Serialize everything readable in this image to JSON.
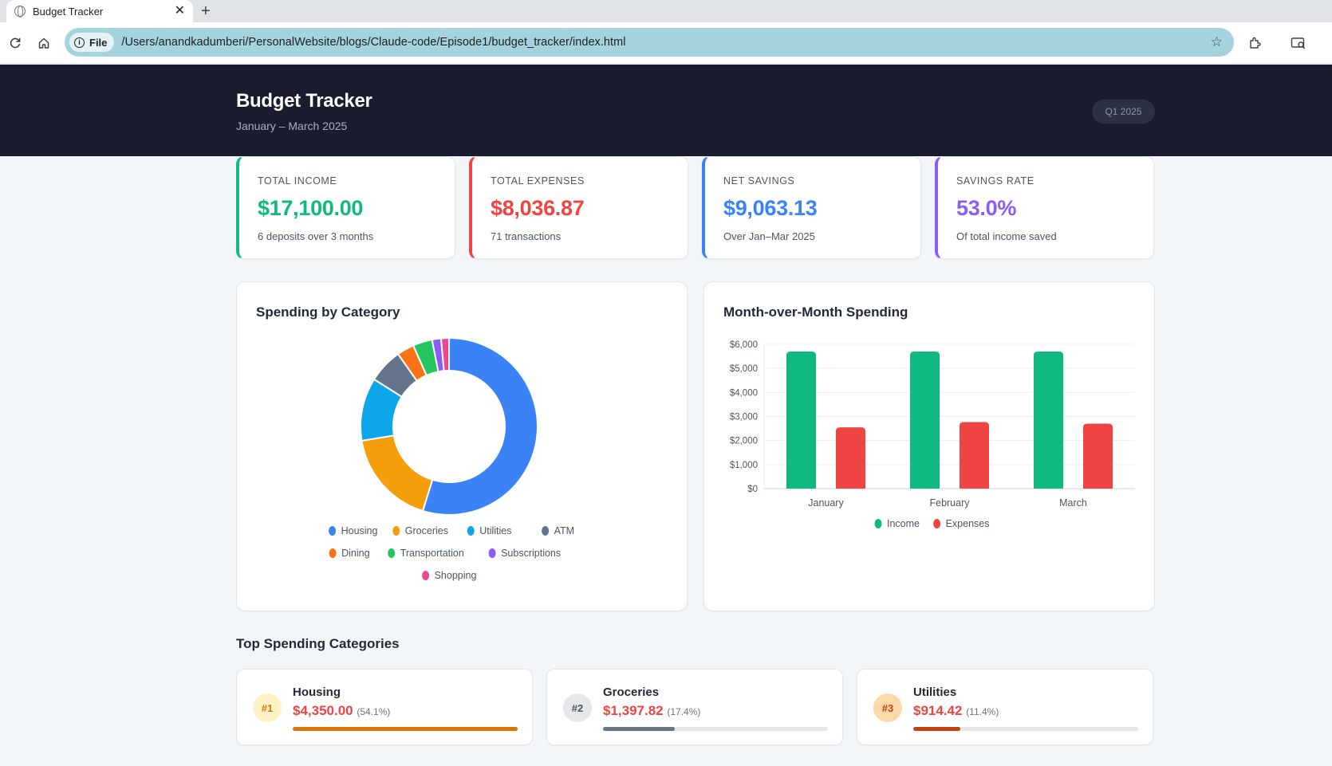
{
  "browser": {
    "tab_title": "Budget Tracker",
    "file_label": "File",
    "url": "/Users/anandkadumberi/PersonalWebsite/blogs/Claude-code/Episode1/budget_tracker/index.html"
  },
  "header": {
    "title": "Budget Tracker",
    "subtitle": "January – March 2025",
    "period_badge": "Q1 2025"
  },
  "stats": [
    {
      "label": "TOTAL INCOME",
      "value": "$17,100.00",
      "note": "6 deposits over 3 months",
      "color": "#10b981"
    },
    {
      "label": "TOTAL EXPENSES",
      "value": "$8,036.87",
      "note": "71 transactions",
      "color": "#ef4444"
    },
    {
      "label": "NET SAVINGS",
      "value": "$9,063.13",
      "note": "Over Jan–Mar 2025",
      "color": "#3b82f6"
    },
    {
      "label": "SAVINGS RATE",
      "value": "53.0%",
      "note": "Of total income saved",
      "color": "#8b5cf6"
    }
  ],
  "chart_data": [
    {
      "type": "pie",
      "title": "Spending by Category",
      "categories": [
        "Housing",
        "Groceries",
        "Utilities",
        "ATM",
        "Dining",
        "Transportation",
        "Subscriptions",
        "Shopping"
      ],
      "values": [
        4350.0,
        1397.82,
        914.42,
        500,
        250,
        280,
        130,
        115
      ],
      "colors": [
        "#3b82f6",
        "#f59e0b",
        "#0ea5e9",
        "#64748b",
        "#f97316",
        "#22c55e",
        "#8b5cf6",
        "#ec4899"
      ],
      "legend": "bottom"
    },
    {
      "type": "bar",
      "title": "Month-over-Month Spending",
      "categories": [
        "January",
        "February",
        "March"
      ],
      "series": [
        {
          "name": "Income",
          "values": [
            5700,
            5700,
            5700
          ],
          "color": "#10b981"
        },
        {
          "name": "Expenses",
          "values": [
            2550,
            2770,
            2700
          ],
          "color": "#ef4444"
        }
      ],
      "ylim": [
        0,
        6000
      ],
      "yticks": [
        "$0",
        "$1,000",
        "$2,000",
        "$3,000",
        "$4,000",
        "$5,000",
        "$6,000"
      ],
      "grid": true,
      "legend": "bottom"
    }
  ],
  "top_section_title": "Top Spending Categories",
  "top_categories": [
    {
      "rank": "#1",
      "name": "Housing",
      "amount": "$4,350.00",
      "pct": "(54.1%)",
      "share": 1.0,
      "bar_color": "#d97706",
      "badge_bg": "#fef3c7",
      "badge_fg": "#d97706"
    },
    {
      "rank": "#2",
      "name": "Groceries",
      "amount": "$1,397.82",
      "pct": "(17.4%)",
      "share": 0.32,
      "bar_color": "#6b7280",
      "badge_bg": "#e5e7eb",
      "badge_fg": "#4b5563"
    },
    {
      "rank": "#3",
      "name": "Utilities",
      "amount": "$914.42",
      "pct": "(11.4%)",
      "share": 0.21,
      "bar_color": "#c2410c",
      "badge_bg": "#fed7aa",
      "badge_fg": "#c2410c"
    }
  ]
}
